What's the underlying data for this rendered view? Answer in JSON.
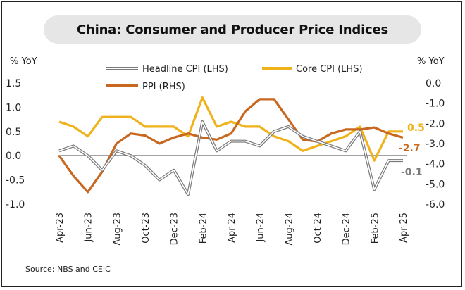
{
  "chart_data": {
    "type": "line",
    "title": "China: Consumer and Producer Price Indices",
    "left_axis_unit": "% YoY",
    "right_axis_unit": "% YoY",
    "left_ticks": [
      "1.5",
      "1.0",
      "0.5",
      "0.0",
      "-0.5",
      "-1.0"
    ],
    "right_ticks": [
      "0.0",
      "-1.0",
      "-2.0",
      "-3.0",
      "-4.0",
      "-5.0",
      "-6.0"
    ],
    "ylim_left": [
      -1.0,
      1.5
    ],
    "ylim_right": [
      -6.0,
      0.0
    ],
    "x": [
      "Apr-23",
      "May-23",
      "Jun-23",
      "Jul-23",
      "Aug-23",
      "Sep-23",
      "Oct-23",
      "Nov-23",
      "Dec-23",
      "Jan-24",
      "Feb-24",
      "Mar-24",
      "Apr-24",
      "May-24",
      "Jun-24",
      "Jul-24",
      "Aug-24",
      "Sep-24",
      "Oct-24",
      "Nov-24",
      "Dec-24",
      "Jan-25",
      "Feb-25",
      "Mar-25",
      "Apr-25"
    ],
    "x_tick_labels": [
      "Apr-23",
      "Jun-23",
      "Aug-23",
      "Oct-23",
      "Dec-23",
      "Feb-24",
      "Apr-24",
      "Jun-24",
      "Aug-24",
      "Oct-24",
      "Dec-24",
      "Feb-25",
      "Apr-25"
    ],
    "grid": false,
    "series": [
      {
        "name": "Headline CPI (LHS)",
        "axis": "left",
        "color": "#7a7a7a",
        "values": [
          0.1,
          0.2,
          0.0,
          -0.3,
          0.1,
          0.0,
          -0.2,
          -0.5,
          -0.3,
          -0.8,
          0.7,
          0.1,
          0.3,
          0.3,
          0.2,
          0.5,
          0.6,
          0.4,
          0.3,
          0.2,
          0.1,
          0.5,
          -0.7,
          -0.1,
          -0.1
        ]
      },
      {
        "name": "Core CPI (LHS)",
        "axis": "left",
        "color": "#efb21a",
        "values": [
          0.7,
          0.6,
          0.4,
          0.8,
          0.8,
          0.8,
          0.6,
          0.6,
          0.6,
          0.4,
          1.2,
          0.6,
          0.7,
          0.6,
          0.6,
          0.4,
          0.3,
          0.1,
          0.2,
          0.3,
          0.4,
          0.6,
          -0.1,
          0.5,
          0.5
        ]
      },
      {
        "name": "PPI (RHS)",
        "axis": "right",
        "color": "#c8671f",
        "values": [
          -3.6,
          -4.6,
          -5.4,
          -4.4,
          -3.0,
          -2.5,
          -2.6,
          -3.0,
          -2.7,
          -2.5,
          -2.7,
          -2.8,
          -2.5,
          -1.4,
          -0.8,
          -0.8,
          -1.8,
          -2.8,
          -2.9,
          -2.5,
          -2.3,
          -2.3,
          -2.2,
          -2.5,
          -2.7
        ]
      }
    ],
    "end_labels": [
      {
        "text": "0.5",
        "color": "#efb21a"
      },
      {
        "text": "-2.7",
        "color": "#c8671f"
      },
      {
        "text": "-0.1",
        "color": "#7a7a7a"
      }
    ],
    "source": "Source: NBS and CEIC"
  }
}
